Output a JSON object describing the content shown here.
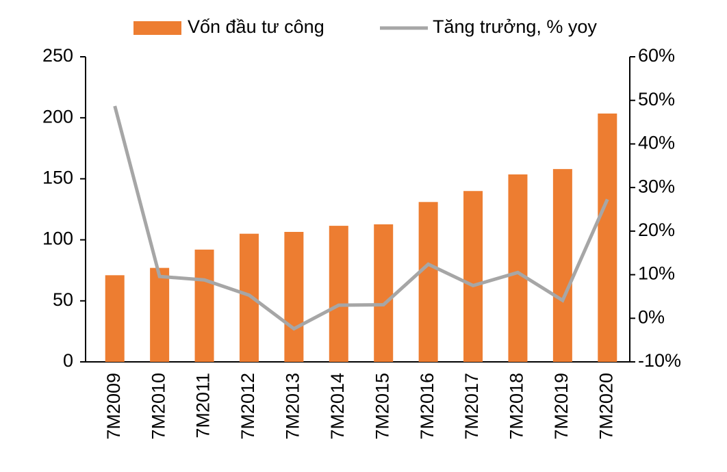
{
  "chart_data": {
    "type": "bar-line",
    "categories": [
      "7M2009",
      "7M2010",
      "7M2011",
      "7M2012",
      "7M2013",
      "7M2014",
      "7M2015",
      "7M2016",
      "7M2017",
      "7M2018",
      "7M2019",
      "7M2020"
    ],
    "series": [
      {
        "name": "Vốn đầu tư công",
        "type": "bar",
        "color": "#ed7d31",
        "values": [
          71,
          77,
          92,
          105,
          106.5,
          111.5,
          112.7,
          131,
          140,
          153.6,
          158,
          203.5
        ]
      },
      {
        "name": "Tăng trưởng, % yoy",
        "type": "line",
        "axis": "y2",
        "color": "#a6a6a6",
        "values": [
          48.7,
          9.6,
          8.8,
          5.3,
          -2.4,
          3,
          3.1,
          12.4,
          7.5,
          10.5,
          4.1,
          27.3
        ]
      }
    ],
    "ylim": [
      0,
      250
    ],
    "yticks": [
      0,
      50,
      100,
      150,
      200,
      250
    ],
    "y2lim": [
      -10,
      60
    ],
    "y2ticks": [
      {
        "value": -10,
        "label": "-10%"
      },
      {
        "value": 0,
        "label": "0%"
      },
      {
        "value": 10,
        "label": "10%"
      },
      {
        "value": 20,
        "label": "20%"
      },
      {
        "value": 30,
        "label": "30%"
      },
      {
        "value": 40,
        "label": "40%"
      },
      {
        "value": 50,
        "label": "50%"
      },
      {
        "value": 60,
        "label": "60%"
      }
    ],
    "legend": "top"
  }
}
